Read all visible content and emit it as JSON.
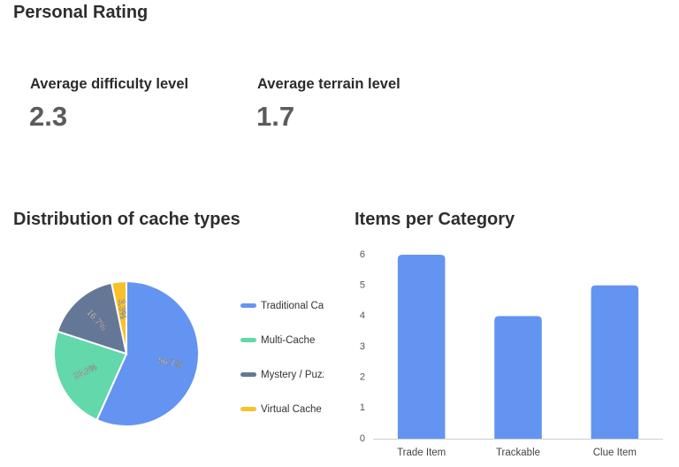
{
  "header": {
    "title": "Personal Rating"
  },
  "stats": [
    {
      "label": "Average difficulty level",
      "value": "2.3"
    },
    {
      "label": "Average terrain level",
      "value": "1.7"
    }
  ],
  "chart_data": [
    {
      "type": "pie",
      "title": "Distribution of cache types",
      "slices": [
        {
          "label": "Traditional Cache",
          "value": 56.7,
          "display": "56.7%",
          "color": "#6394f2"
        },
        {
          "label": "Multi-Cache",
          "value": 23.3,
          "display": "23.3%",
          "color": "#63d8ab"
        },
        {
          "label": "Mystery / Puzzle",
          "value": 16.7,
          "display": "16.7%",
          "color": "#657796"
        },
        {
          "label": "Virtual Cache",
          "value": 3.3,
          "display": "3.3%",
          "color": "#f8c12a"
        }
      ],
      "legend_position": "right"
    },
    {
      "type": "bar",
      "title": "Items per Category",
      "categories": [
        "Trade Item",
        "Trackable",
        "Clue Item"
      ],
      "values": [
        6,
        4,
        5
      ],
      "ylim": [
        0,
        6
      ],
      "yticks": [
        0,
        1,
        2,
        3,
        4,
        5,
        6
      ],
      "color": "#6394f2",
      "grid": false
    }
  ]
}
